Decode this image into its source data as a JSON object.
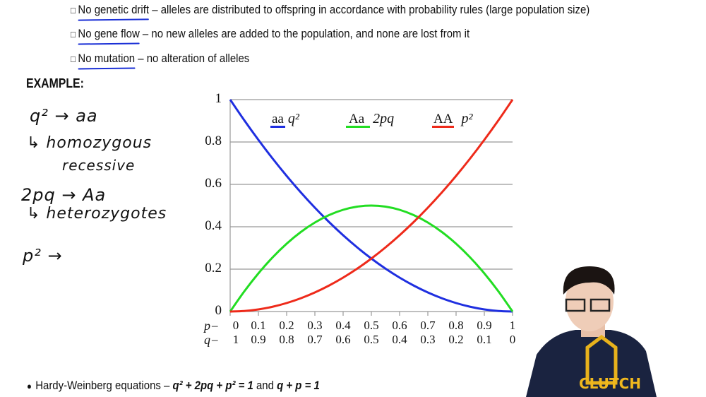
{
  "bullets": [
    {
      "term": "No genetic drift",
      "text": " – alleles are distributed to offspring in accordance with probability rules (large population size)"
    },
    {
      "term": "No gene flow",
      "text": " – no new alleles are added to the population, and none are lost from it"
    },
    {
      "term": "No mutation",
      "text": " – no alteration of alleles"
    }
  ],
  "checkbox_glyph": "□",
  "example_label": "EXAMPLE:",
  "handwriting": [
    "q² → aa",
    "↳ homozygous",
    "recessive",
    "2pq → Aa",
    "↳ heterozygotes",
    "p² →"
  ],
  "equation": {
    "bullet": "●",
    "prefix": "Hardy-Weinberg equations – ",
    "eq1": "q² + 2pq + p² = 1",
    "and": " and ",
    "eq2": "q + p = 1"
  },
  "presenter": {
    "shirt_logo": "CLUTCH"
  },
  "chart_data": {
    "type": "line",
    "x_label_p": "p",
    "x_label_q": "q",
    "x_ticks_p": [
      "0",
      "0.1",
      "0.2",
      "0.3",
      "0.4",
      "0.5",
      "0.6",
      "0.7",
      "0.8",
      "0.9",
      "1"
    ],
    "x_ticks_q": [
      "1",
      "0.9",
      "0.8",
      "0.7",
      "0.6",
      "0.5",
      "0.4",
      "0.3",
      "0.2",
      "0.1",
      "0"
    ],
    "y_ticks": [
      "0",
      "0.2",
      "0.4",
      "0.6",
      "0.8",
      "1"
    ],
    "xlim": [
      0,
      1
    ],
    "ylim": [
      0,
      1
    ],
    "grid": "horizontal",
    "legend_placement": "top",
    "x": [
      0,
      0.05,
      0.1,
      0.15,
      0.2,
      0.25,
      0.3,
      0.35,
      0.4,
      0.45,
      0.5,
      0.55,
      0.6,
      0.65,
      0.7,
      0.75,
      0.8,
      0.85,
      0.9,
      0.95,
      1
    ],
    "series": [
      {
        "name": "aa",
        "label": "q²",
        "color": "#1f2fe0",
        "values": [
          1,
          0.9025,
          0.81,
          0.7225,
          0.64,
          0.5625,
          0.49,
          0.4225,
          0.36,
          0.3025,
          0.25,
          0.2025,
          0.16,
          0.1225,
          0.09,
          0.0625,
          0.04,
          0.0225,
          0.01,
          0.0025,
          0
        ]
      },
      {
        "name": "Aa",
        "label": "2pq",
        "color": "#22dd22",
        "values": [
          0,
          0.095,
          0.18,
          0.255,
          0.32,
          0.375,
          0.42,
          0.455,
          0.48,
          0.495,
          0.5,
          0.495,
          0.48,
          0.455,
          0.42,
          0.375,
          0.32,
          0.255,
          0.18,
          0.095,
          0
        ]
      },
      {
        "name": "AA",
        "label": "p²",
        "color": "#ee2a1a",
        "values": [
          0,
          0.0025,
          0.01,
          0.0225,
          0.04,
          0.0625,
          0.09,
          0.1225,
          0.16,
          0.2025,
          0.25,
          0.3025,
          0.36,
          0.4225,
          0.49,
          0.5625,
          0.64,
          0.7225,
          0.81,
          0.9025,
          1
        ]
      }
    ]
  }
}
